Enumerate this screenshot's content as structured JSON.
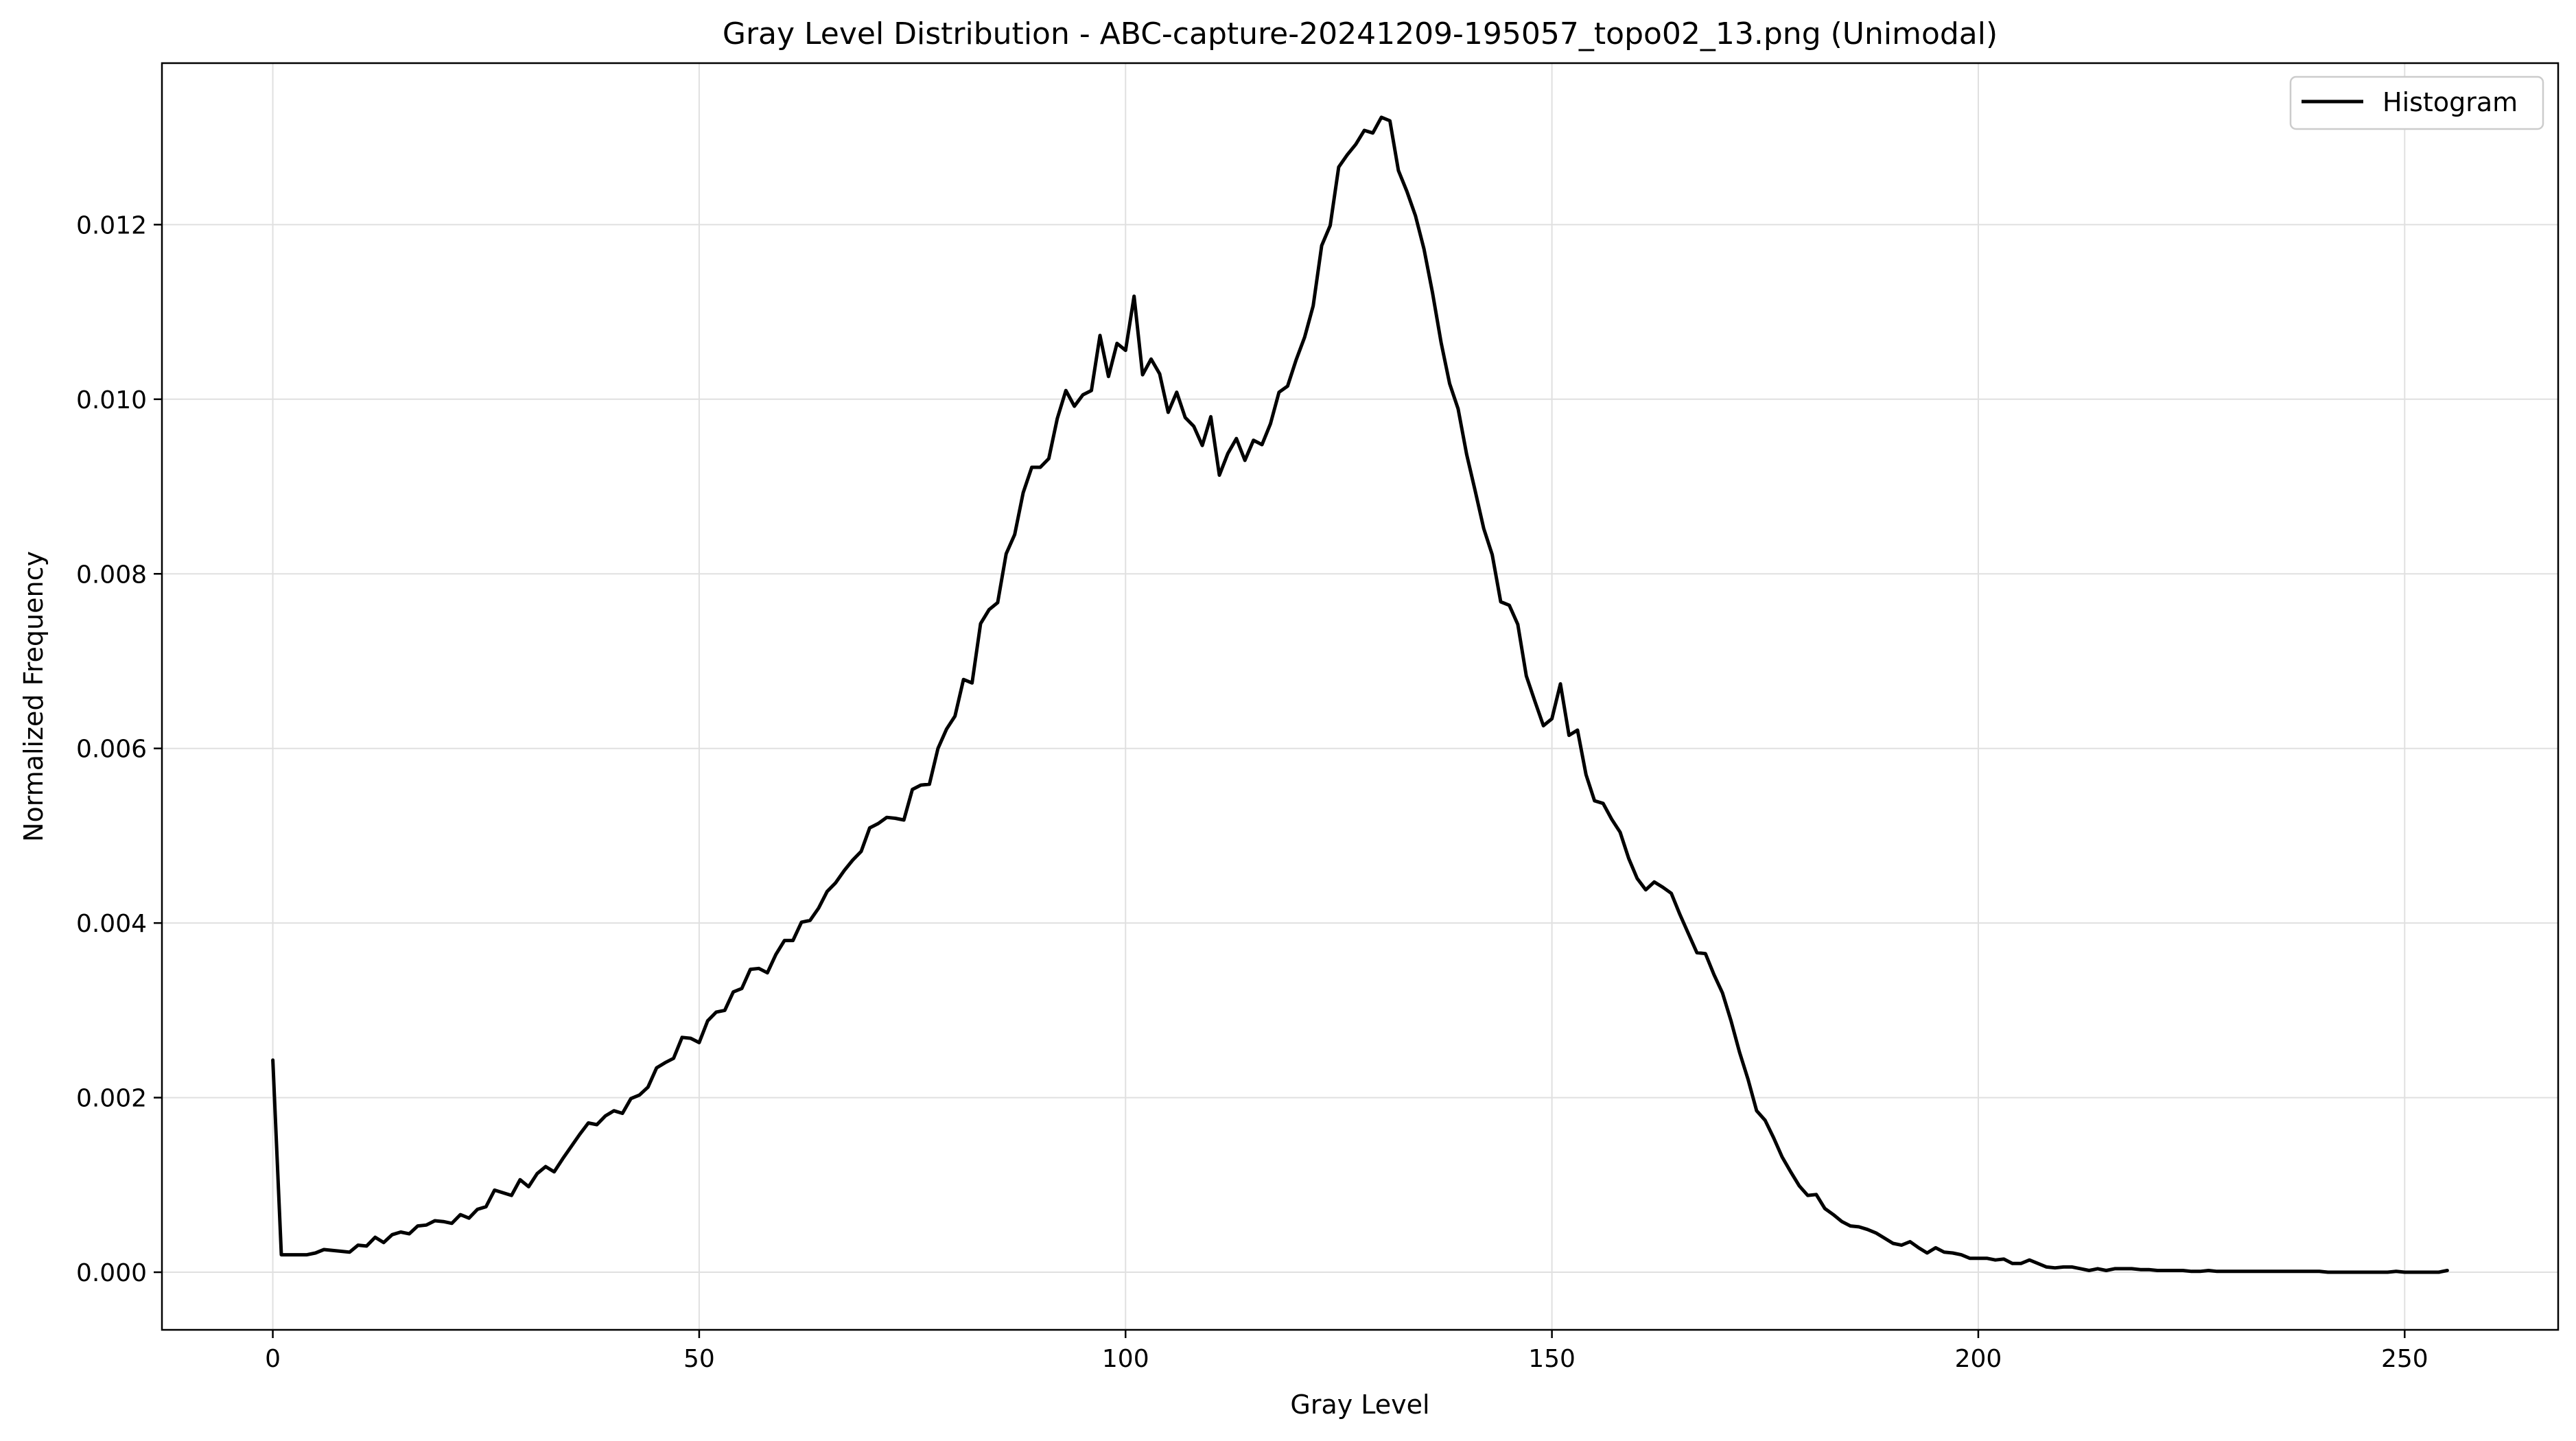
{
  "chart_data": {
    "type": "line",
    "title": "Gray Level Distribution - ABC-capture-20241209-195057_topo02_13.png (Unimodal)",
    "xlabel": "Gray Level",
    "ylabel": "Normalized Frequency",
    "xlim": [
      -13,
      268
    ],
    "ylim": [
      -0.00066,
      0.01385
    ],
    "xticks": [
      0,
      50,
      100,
      150,
      200,
      250
    ],
    "yticks": [
      0.0,
      0.002,
      0.004,
      0.006,
      0.008,
      0.01,
      0.012
    ],
    "xtick_labels": [
      "0",
      "50",
      "100",
      "150",
      "200",
      "250"
    ],
    "ytick_labels": [
      "0.000",
      "0.002",
      "0.004",
      "0.006",
      "0.008",
      "0.010",
      "0.012"
    ],
    "grid": true,
    "legend": {
      "position": "top-right",
      "entries": [
        "Histogram"
      ]
    },
    "series": [
      {
        "name": "Histogram",
        "color": "#000000",
        "x": [
          0,
          1,
          2,
          3,
          4,
          5,
          6,
          7,
          8,
          9,
          10,
          11,
          12,
          13,
          14,
          15,
          16,
          17,
          18,
          19,
          20,
          21,
          22,
          23,
          24,
          25,
          26,
          27,
          28,
          29,
          30,
          31,
          32,
          33,
          34,
          35,
          36,
          37,
          38,
          39,
          40,
          41,
          42,
          43,
          44,
          45,
          46,
          47,
          48,
          49,
          50,
          51,
          52,
          53,
          54,
          55,
          56,
          57,
          58,
          59,
          60,
          61,
          62,
          63,
          64,
          65,
          66,
          67,
          68,
          69,
          70,
          71,
          72,
          73,
          74,
          75,
          76,
          77,
          78,
          79,
          80,
          81,
          82,
          83,
          84,
          85,
          86,
          87,
          88,
          89,
          90,
          91,
          92,
          93,
          94,
          95,
          96,
          97,
          98,
          99,
          100,
          101,
          102,
          103,
          104,
          105,
          106,
          107,
          108,
          109,
          110,
          111,
          112,
          113,
          114,
          115,
          116,
          117,
          118,
          119,
          120,
          121,
          122,
          123,
          124,
          125,
          126,
          127,
          128,
          129,
          130,
          131,
          132,
          133,
          134,
          135,
          136,
          137,
          138,
          139,
          140,
          141,
          142,
          143,
          144,
          145,
          146,
          147,
          148,
          149,
          150,
          151,
          152,
          153,
          154,
          155,
          156,
          157,
          158,
          159,
          160,
          161,
          162,
          163,
          164,
          165,
          166,
          167,
          168,
          169,
          170,
          171,
          172,
          173,
          174,
          175,
          176,
          177,
          178,
          179,
          180,
          181,
          182,
          183,
          184,
          185,
          186,
          187,
          188,
          189,
          190,
          191,
          192,
          193,
          194,
          195,
          196,
          197,
          198,
          199,
          200,
          201,
          202,
          203,
          204,
          205,
          206,
          207,
          208,
          209,
          210,
          211,
          212,
          213,
          214,
          215,
          216,
          217,
          218,
          219,
          220,
          221,
          222,
          223,
          224,
          225,
          226,
          227,
          228,
          229,
          230,
          231,
          232,
          233,
          234,
          235,
          236,
          237,
          238,
          239,
          240,
          241,
          242,
          243,
          244,
          245,
          246,
          247,
          248,
          249,
          250,
          251,
          252,
          253,
          254,
          255
        ],
        "y": [
          0.00243,
          0.0002,
          0.0002,
          0.0002,
          0.0002,
          0.00022,
          0.00026,
          0.00025,
          0.00024,
          0.00023,
          0.00031,
          0.0003,
          0.0004,
          0.00034,
          0.00043,
          0.00046,
          0.00044,
          0.00053,
          0.00054,
          0.00059,
          0.00058,
          0.00056,
          0.00066,
          0.00062,
          0.00072,
          0.00075,
          0.00094,
          0.00091,
          0.00088,
          0.00106,
          0.00098,
          0.00113,
          0.00121,
          0.00115,
          0.0013,
          0.00144,
          0.00158,
          0.00171,
          0.00169,
          0.00179,
          0.00185,
          0.00182,
          0.00199,
          0.00203,
          0.00212,
          0.00234,
          0.0024,
          0.00245,
          0.00269,
          0.00268,
          0.00263,
          0.00288,
          0.00298,
          0.003,
          0.00321,
          0.00325,
          0.00347,
          0.00348,
          0.00343,
          0.00364,
          0.0038,
          0.0038,
          0.00401,
          0.00403,
          0.00417,
          0.00436,
          0.00446,
          0.0046,
          0.00472,
          0.00482,
          0.00509,
          0.00514,
          0.00521,
          0.0052,
          0.00518,
          0.00553,
          0.00558,
          0.00559,
          0.006,
          0.00622,
          0.00637,
          0.00679,
          0.00675,
          0.00743,
          0.00759,
          0.00767,
          0.00823,
          0.00845,
          0.00893,
          0.00922,
          0.00922,
          0.00932,
          0.00978,
          0.0101,
          0.00992,
          0.01005,
          0.0101,
          0.01073,
          0.01026,
          0.01064,
          0.01056,
          0.01118,
          0.01028,
          0.01046,
          0.01029,
          0.00985,
          0.01008,
          0.00979,
          0.00969,
          0.00947,
          0.0098,
          0.00913,
          0.00938,
          0.00955,
          0.0093,
          0.00953,
          0.00948,
          0.00972,
          0.01008,
          0.01015,
          0.01045,
          0.01071,
          0.01107,
          0.01176,
          0.01199,
          0.01266,
          0.0128,
          0.01292,
          0.01308,
          0.01305,
          0.01323,
          0.01319,
          0.01262,
          0.01238,
          0.0121,
          0.01172,
          0.01122,
          0.01065,
          0.01018,
          0.00989,
          0.00937,
          0.00895,
          0.00852,
          0.00822,
          0.00768,
          0.00764,
          0.00742,
          0.00683,
          0.00654,
          0.00626,
          0.00634,
          0.00674,
          0.00615,
          0.00621,
          0.0057,
          0.0054,
          0.00537,
          0.00519,
          0.00504,
          0.00474,
          0.00451,
          0.00438,
          0.00447,
          0.00441,
          0.00434,
          0.0041,
          0.00388,
          0.00366,
          0.00365,
          0.00341,
          0.0032,
          0.00288,
          0.00252,
          0.00221,
          0.00185,
          0.00174,
          0.00154,
          0.00132,
          0.00115,
          0.00099,
          0.00088,
          0.00089,
          0.00073,
          0.00066,
          0.00058,
          0.00053,
          0.00052,
          0.00049,
          0.00045,
          0.00039,
          0.00033,
          0.00031,
          0.00035,
          0.00028,
          0.00022,
          0.00028,
          0.00023,
          0.00022,
          0.0002,
          0.00016,
          0.00016,
          0.00016,
          0.00014,
          0.00015,
          0.0001,
          0.0001,
          0.00014,
          0.0001,
          6e-05,
          5e-05,
          6e-05,
          6e-05,
          4e-05,
          2e-05,
          4e-05,
          2e-05,
          4e-05,
          4e-05,
          4e-05,
          3e-05,
          3e-05,
          2e-05,
          2e-05,
          2e-05,
          2e-05,
          1e-05,
          1e-05,
          2e-05,
          1e-05,
          1e-05,
          1e-05,
          1e-05,
          1e-05,
          1e-05,
          1e-05,
          1e-05,
          1e-05,
          1e-05,
          1e-05,
          1e-05,
          1e-05,
          0.0,
          0.0,
          0.0,
          0.0,
          0.0,
          0.0,
          0.0,
          0.0,
          1e-05,
          0.0,
          0.0,
          0.0,
          0.0,
          0.0,
          2e-05
        ]
      }
    ]
  }
}
